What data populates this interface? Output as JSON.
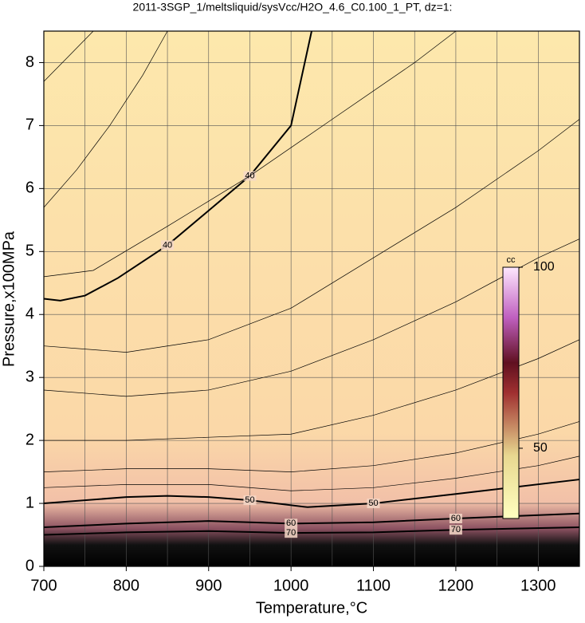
{
  "chart_data": {
    "type": "contour",
    "title": "2011-3SGP_1/meltsliquid/sysVcc/H2O_4.6_C0.100_1_PT, dz=1:",
    "x_label": "Temperature,°C",
    "y_label": "Pressure,x100MPa",
    "xlim": [
      700,
      1350
    ],
    "ylim": [
      0,
      8.5
    ],
    "xticks": [
      700,
      800,
      900,
      1000,
      1100,
      1200,
      1300
    ],
    "yticks": [
      0,
      1,
      2,
      3,
      4,
      5,
      6,
      7,
      8
    ],
    "xminorticks": [
      750,
      850,
      950,
      1050,
      1150,
      1250
    ],
    "grid": true,
    "contours": [
      {
        "level": 40,
        "x": [
          700,
          720,
          750,
          790,
          850,
          900,
          950,
          1000,
          1025
        ],
        "y": [
          4.25,
          4.22,
          4.3,
          4.58,
          5.1,
          5.65,
          6.2,
          7.0,
          8.5
        ]
      },
      {
        "level": 50,
        "x": [
          700,
          800,
          850,
          900,
          950,
          1020,
          1100,
          1200,
          1350
        ],
        "y": [
          1.0,
          1.1,
          1.12,
          1.1,
          1.05,
          0.94,
          1.0,
          1.15,
          1.38
        ]
      },
      {
        "level": 60,
        "x": [
          700,
          800,
          900,
          1000,
          1100,
          1200,
          1350
        ],
        "y": [
          0.62,
          0.68,
          0.72,
          0.68,
          0.7,
          0.76,
          0.84
        ]
      },
      {
        "level": 70,
        "x": [
          700,
          800,
          900,
          1000,
          1100,
          1200,
          1350
        ],
        "y": [
          0.5,
          0.54,
          0.56,
          0.53,
          0.54,
          0.58,
          0.62
        ]
      },
      {
        "x": [
          700,
          730,
          760
        ],
        "y": [
          7.7,
          8.1,
          8.5
        ]
      },
      {
        "x": [
          700,
          740,
          780,
          820,
          850
        ],
        "y": [
          5.7,
          6.3,
          7.0,
          7.8,
          8.5
        ]
      },
      {
        "x": [
          700,
          760,
          850,
          950,
          1050,
          1150,
          1200
        ],
        "y": [
          4.6,
          4.7,
          5.4,
          6.2,
          7.1,
          8.0,
          8.5
        ]
      },
      {
        "x": [
          700,
          800,
          900,
          1000,
          1100,
          1200,
          1300,
          1350
        ],
        "y": [
          3.5,
          3.4,
          3.6,
          4.1,
          4.9,
          5.7,
          6.6,
          7.1
        ]
      },
      {
        "x": [
          700,
          800,
          900,
          1000,
          1100,
          1200,
          1300,
          1350
        ],
        "y": [
          2.8,
          2.7,
          2.8,
          3.1,
          3.6,
          4.2,
          4.9,
          5.2
        ]
      },
      {
        "x": [
          700,
          800,
          900,
          1000,
          1100,
          1200,
          1300,
          1350
        ],
        "y": [
          2.0,
          2.0,
          2.05,
          2.1,
          2.4,
          2.8,
          3.3,
          3.6
        ]
      },
      {
        "x": [
          700,
          800,
          900,
          1000,
          1100,
          1200,
          1300,
          1350
        ],
        "y": [
          1.5,
          1.55,
          1.55,
          1.5,
          1.6,
          1.8,
          2.1,
          2.3
        ]
      },
      {
        "x": [
          700,
          800,
          900,
          1000,
          1100,
          1200,
          1300,
          1350
        ],
        "y": [
          1.25,
          1.3,
          1.3,
          1.2,
          1.25,
          1.4,
          1.6,
          1.75
        ]
      }
    ],
    "colorbar": {
      "label": "cc",
      "clim": [
        30.6,
        100
      ],
      "ticks": [
        50,
        100
      ]
    }
  }
}
